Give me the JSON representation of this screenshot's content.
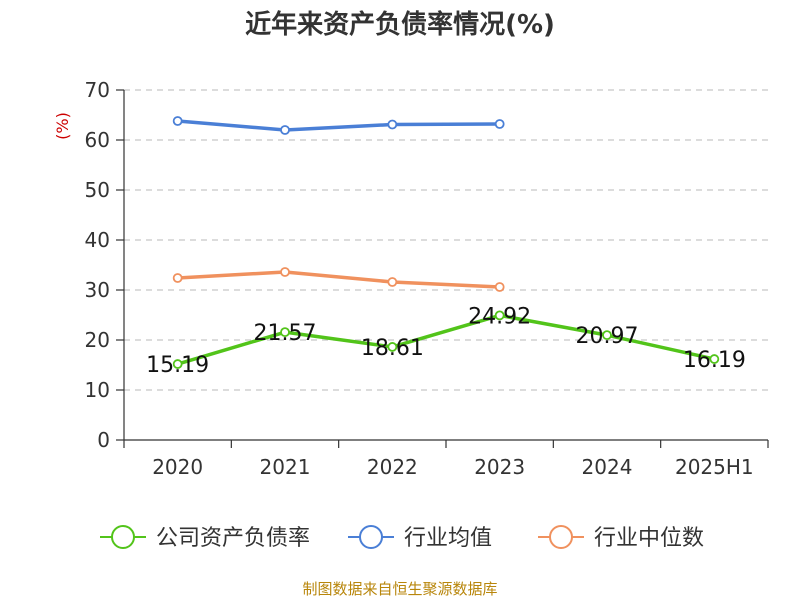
{
  "chart_data": {
    "type": "line",
    "title": "近年来资产负债率情况(%)",
    "ylabel": "(%)",
    "ylim": [
      0,
      70
    ],
    "yticks": [
      0,
      10,
      20,
      30,
      40,
      50,
      60,
      70
    ],
    "categories": [
      "2020",
      "2021",
      "2022",
      "2023",
      "2024",
      "2025H1"
    ],
    "grid": true,
    "legend_position": "bottom",
    "series": [
      {
        "name": "公司资产负债率",
        "color": "#52c41a",
        "values": [
          15.19,
          21.57,
          18.61,
          24.92,
          20.97,
          16.19
        ],
        "labels": [
          "15.19",
          "21.57",
          "18.61",
          "24.92",
          "20.97",
          "16.19"
        ]
      },
      {
        "name": "行业均值",
        "color": "#4a7fd6",
        "values": [
          63.8,
          62.0,
          63.1,
          63.2,
          null,
          null
        ]
      },
      {
        "name": "行业中位数",
        "color": "#f0915e",
        "values": [
          32.4,
          33.6,
          31.6,
          30.6,
          null,
          null
        ]
      }
    ]
  },
  "source": "制图数据来自恒生聚源数据库"
}
